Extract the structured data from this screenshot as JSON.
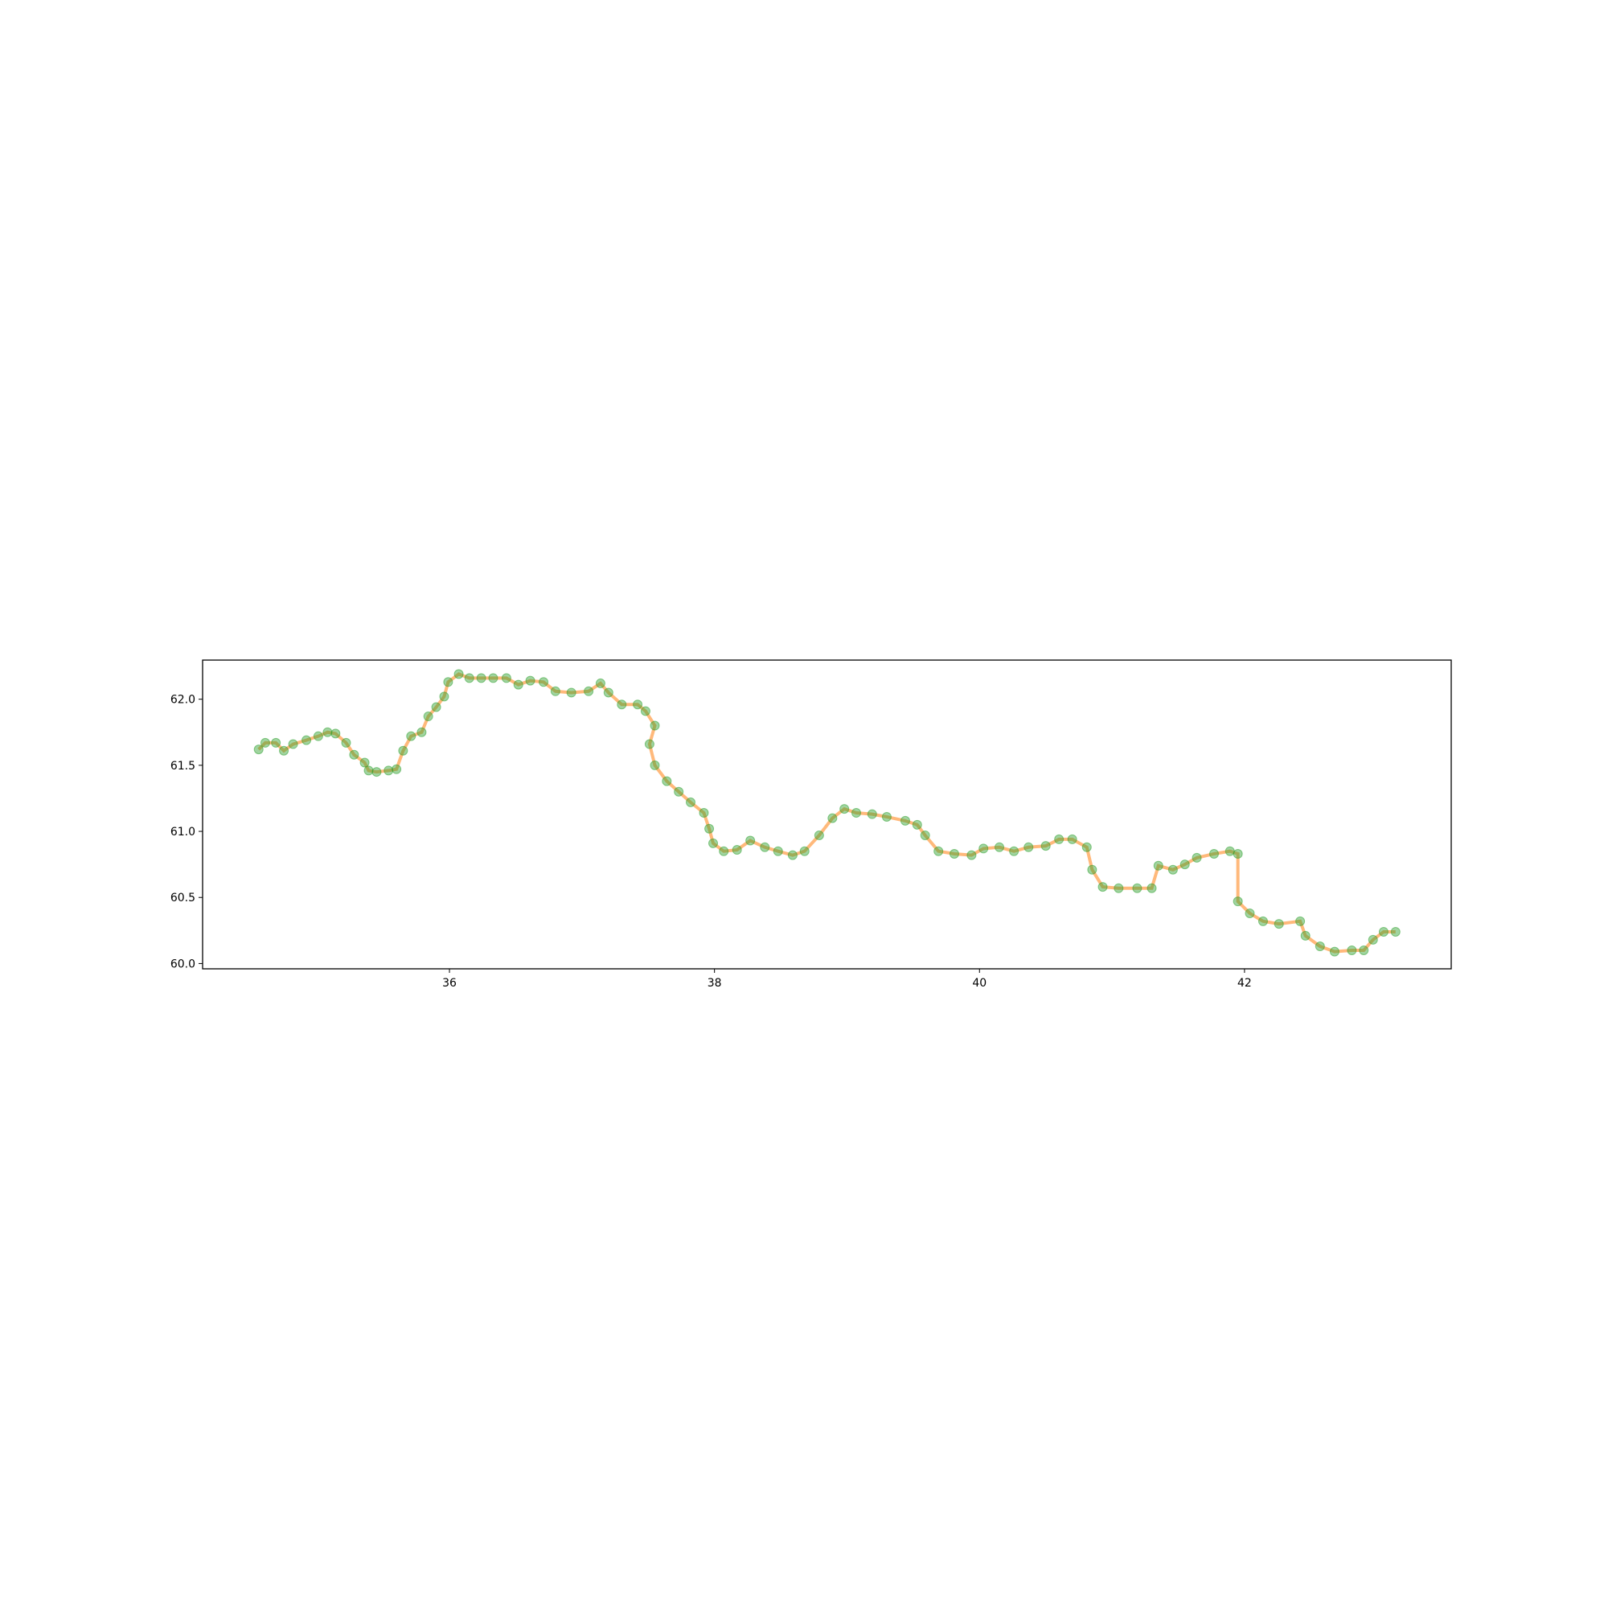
{
  "chart_data": {
    "type": "scatter",
    "x": [
      34.56,
      34.61,
      34.69,
      34.75,
      34.82,
      34.92,
      35.01,
      35.08,
      35.14,
      35.22,
      35.28,
      35.36,
      35.39,
      35.45,
      35.54,
      35.6,
      35.65,
      35.71,
      35.79,
      35.84,
      35.9,
      35.96,
      35.99,
      36.07,
      36.15,
      36.24,
      36.33,
      36.43,
      36.52,
      36.61,
      36.71,
      36.8,
      36.92,
      37.05,
      37.14,
      37.2,
      37.3,
      37.42,
      37.48,
      37.55,
      37.51,
      37.55,
      37.64,
      37.73,
      37.82,
      37.92,
      37.96,
      37.99,
      38.07,
      38.17,
      38.27,
      38.38,
      38.48,
      38.59,
      38.68,
      38.79,
      38.89,
      38.98,
      39.07,
      39.19,
      39.3,
      39.44,
      39.53,
      39.59,
      39.69,
      39.81,
      39.94,
      40.03,
      40.15,
      40.26,
      40.37,
      40.5,
      40.6,
      40.7,
      40.81,
      40.85,
      40.93,
      41.05,
      41.19,
      41.3,
      41.35,
      41.46,
      41.55,
      41.64,
      41.77,
      41.89,
      41.95,
      41.95,
      42.04,
      42.14,
      42.26,
      42.42,
      42.46,
      42.57,
      42.68,
      42.81,
      42.9,
      42.97,
      43.05,
      43.14
    ],
    "y": [
      61.62,
      61.67,
      61.67,
      61.61,
      61.66,
      61.69,
      61.72,
      61.75,
      61.74,
      61.67,
      61.58,
      61.52,
      61.46,
      61.45,
      61.46,
      61.47,
      61.61,
      61.72,
      61.75,
      61.87,
      61.94,
      62.02,
      62.13,
      62.19,
      62.16,
      62.16,
      62.16,
      62.16,
      62.11,
      62.14,
      62.13,
      62.06,
      62.05,
      62.06,
      62.12,
      62.05,
      61.96,
      61.96,
      61.91,
      61.8,
      61.66,
      61.5,
      61.38,
      61.3,
      61.22,
      61.14,
      61.02,
      60.91,
      60.85,
      60.86,
      60.93,
      60.88,
      60.85,
      60.82,
      60.85,
      60.97,
      61.1,
      61.17,
      61.14,
      61.13,
      61.11,
      61.08,
      61.05,
      60.97,
      60.85,
      60.83,
      60.82,
      60.87,
      60.88,
      60.85,
      60.88,
      60.89,
      60.94,
      60.94,
      60.88,
      60.71,
      60.58,
      60.57,
      60.57,
      60.57,
      60.74,
      60.71,
      60.75,
      60.8,
      60.83,
      60.85,
      60.83,
      60.47,
      60.38,
      60.32,
      60.3,
      60.32,
      60.21,
      60.13,
      60.09,
      60.1,
      60.1,
      60.18,
      60.24,
      60.24
    ],
    "marker_color": "#2ca02c",
    "line_color": "#ff7f0e",
    "xlim": [
      34.137,
      43.56
    ],
    "ylim": [
      59.96,
      62.296
    ],
    "xticks": [
      36,
      38,
      40,
      42
    ],
    "yticks": [
      {
        "value": 60,
        "label": "60.0"
      },
      {
        "value": 60.5,
        "label": "60.5"
      },
      {
        "value": 61,
        "label": "61.0"
      },
      {
        "value": 61.5,
        "label": "61.5"
      },
      {
        "value": 62,
        "label": "62.0"
      }
    ]
  }
}
